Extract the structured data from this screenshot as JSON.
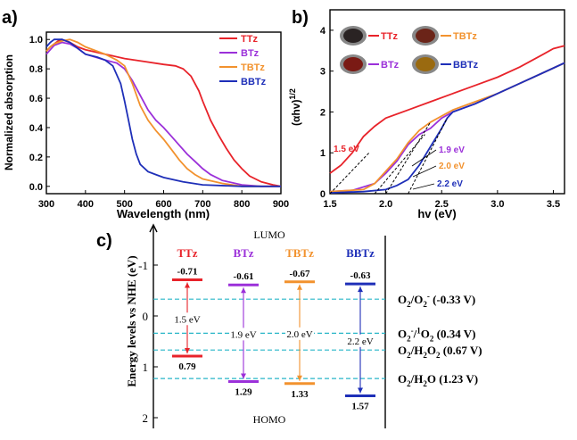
{
  "chart_data": [
    {
      "panel": "a)",
      "type": "line",
      "xlabel": "Wavelength (nm)",
      "ylabel": "Normalized absorption",
      "xlim": [
        300,
        900
      ],
      "ylim": [
        -0.05,
        1.05
      ],
      "xticks": [
        "300",
        "400",
        "500",
        "600",
        "700",
        "800",
        "900"
      ],
      "yticks": [
        "0.0",
        "0.2",
        "0.4",
        "0.6",
        "0.8",
        "1.0"
      ],
      "legend_position": "top-right",
      "series": [
        {
          "name": "TTz",
          "color": "#e8232a",
          "x": [
            300,
            310,
            320,
            330,
            340,
            360,
            380,
            400,
            450,
            500,
            550,
            600,
            630,
            650,
            670,
            690,
            700,
            720,
            740,
            760,
            780,
            800,
            820,
            850,
            880,
            900
          ],
          "y": [
            0.92,
            0.95,
            0.97,
            0.99,
            1.0,
            0.98,
            0.95,
            0.93,
            0.9,
            0.87,
            0.85,
            0.83,
            0.82,
            0.8,
            0.75,
            0.65,
            0.58,
            0.45,
            0.35,
            0.26,
            0.18,
            0.12,
            0.07,
            0.03,
            0.01,
            0.0
          ]
        },
        {
          "name": "BTz",
          "color": "#9b30d9",
          "x": [
            300,
            310,
            320,
            340,
            360,
            380,
            400,
            450,
            480,
            500,
            520,
            540,
            560,
            580,
            600,
            620,
            640,
            660,
            680,
            700,
            720,
            750,
            800,
            850,
            900
          ],
          "y": [
            0.9,
            0.93,
            0.96,
            0.98,
            0.97,
            0.94,
            0.9,
            0.86,
            0.84,
            0.8,
            0.72,
            0.62,
            0.52,
            0.45,
            0.4,
            0.34,
            0.28,
            0.22,
            0.17,
            0.12,
            0.08,
            0.04,
            0.01,
            0.0,
            0.0
          ]
        },
        {
          "name": "TBTz",
          "color": "#f2922e",
          "x": [
            300,
            310,
            320,
            340,
            360,
            380,
            400,
            450,
            480,
            500,
            520,
            540,
            560,
            580,
            600,
            620,
            640,
            660,
            680,
            700,
            750,
            800,
            850,
            900
          ],
          "y": [
            0.92,
            0.95,
            0.97,
            0.99,
            1.0,
            0.98,
            0.95,
            0.9,
            0.86,
            0.82,
            0.7,
            0.55,
            0.45,
            0.38,
            0.32,
            0.25,
            0.18,
            0.12,
            0.08,
            0.05,
            0.02,
            0.0,
            0.0,
            0.0
          ]
        },
        {
          "name": "BBTz",
          "color": "#1e2fb8",
          "x": [
            300,
            310,
            320,
            340,
            360,
            380,
            400,
            430,
            450,
            470,
            490,
            500,
            510,
            520,
            530,
            540,
            560,
            580,
            600,
            650,
            700,
            800,
            900
          ],
          "y": [
            0.95,
            0.98,
            1.0,
            1.0,
            0.98,
            0.94,
            0.9,
            0.88,
            0.86,
            0.82,
            0.7,
            0.58,
            0.45,
            0.32,
            0.22,
            0.15,
            0.1,
            0.08,
            0.06,
            0.03,
            0.01,
            0.0,
            0.0
          ]
        }
      ]
    },
    {
      "panel": "b)",
      "type": "line",
      "xlabel": "hv (eV)",
      "ylabel": "(αhv)1/2",
      "xlim": [
        1.5,
        3.6
      ],
      "ylim": [
        0,
        4.5
      ],
      "xticks": [
        "1.5",
        "2.0",
        "2.5",
        "3.0",
        "3.5"
      ],
      "yticks": [
        "0",
        "1",
        "2",
        "3",
        "4"
      ],
      "legend_position": "top",
      "series": [
        {
          "name": "TTz",
          "color": "#e8232a",
          "x": [
            1.5,
            1.6,
            1.7,
            1.8,
            1.9,
            2.0,
            2.2,
            2.4,
            2.6,
            2.8,
            3.0,
            3.2,
            3.4,
            3.5,
            3.6
          ],
          "y": [
            0.5,
            0.7,
            1.0,
            1.4,
            1.65,
            1.85,
            2.05,
            2.25,
            2.45,
            2.65,
            2.85,
            3.1,
            3.4,
            3.55,
            3.62
          ]
        },
        {
          "name": "BTz",
          "color": "#9b30d9",
          "x": [
            1.5,
            1.7,
            1.9,
            2.0,
            2.1,
            2.2,
            2.3,
            2.4,
            2.5,
            2.6,
            2.8,
            3.0,
            3.2,
            3.4,
            3.6
          ],
          "y": [
            0.05,
            0.08,
            0.25,
            0.5,
            0.8,
            1.2,
            1.45,
            1.6,
            1.85,
            2.0,
            2.2,
            2.45,
            2.7,
            2.95,
            3.2
          ]
        },
        {
          "name": "TBTz",
          "color": "#f2922e",
          "x": [
            1.5,
            1.8,
            1.9,
            2.0,
            2.1,
            2.2,
            2.3,
            2.4,
            2.5,
            2.6,
            2.8,
            3.0,
            3.2,
            3.4,
            3.6
          ],
          "y": [
            0.05,
            0.1,
            0.25,
            0.55,
            0.85,
            1.25,
            1.55,
            1.75,
            1.9,
            2.05,
            2.25,
            2.45,
            2.7,
            2.95,
            3.2
          ]
        },
        {
          "name": "BBTz",
          "color": "#1e2fb8",
          "x": [
            1.5,
            1.8,
            2.0,
            2.1,
            2.2,
            2.3,
            2.4,
            2.5,
            2.55,
            2.6,
            2.8,
            3.0,
            3.2,
            3.4,
            3.6
          ],
          "y": [
            0.02,
            0.05,
            0.1,
            0.2,
            0.35,
            0.7,
            1.15,
            1.6,
            1.85,
            2.0,
            2.2,
            2.45,
            2.7,
            2.95,
            3.2
          ]
        }
      ],
      "annotations": [
        {
          "text": "1.5 eV",
          "color": "#e8232a"
        },
        {
          "text": "1.9 eV",
          "color": "#9b30d9"
        },
        {
          "text": "2.0 eV",
          "color": "#f2922e"
        },
        {
          "text": "2.2 eV",
          "color": "#1e2fb8"
        }
      ],
      "legend": [
        {
          "name": "TTz",
          "color": "#e8232a",
          "swatch": "#2a2323"
        },
        {
          "name": "TBTz",
          "color": "#f2922e",
          "swatch": "#6b2418"
        },
        {
          "name": "BTz",
          "color": "#9b30d9",
          "swatch": "#7a1a14"
        },
        {
          "name": "BBTz",
          "color": "#1e2fb8",
          "swatch": "#9a6a10"
        }
      ]
    },
    {
      "panel": "c)",
      "type": "diagram",
      "ylabel": "Energy levels vs NHE (eV)",
      "ylim": [
        -1.5,
        2.0
      ],
      "yticks": [
        "-1",
        "0",
        "1",
        "2"
      ],
      "top_label": "LUMO",
      "bottom_label": "HOMO",
      "materials": [
        {
          "name": "TTz",
          "color": "#e8232a",
          "lumo": -0.71,
          "homo": 0.79,
          "lumo_label": "-0.71",
          "homo_label": "0.79",
          "gap_label": "1.5 eV"
        },
        {
          "name": "BTz",
          "color": "#9b30d9",
          "lumo": -0.61,
          "homo": 1.29,
          "lumo_label": "-0.61",
          "homo_label": "1.29",
          "gap_label": "1.9 eV"
        },
        {
          "name": "TBTz",
          "color": "#f2922e",
          "lumo": -0.67,
          "homo": 1.33,
          "lumo_label": "-0.67",
          "homo_label": "1.33",
          "gap_label": "2.0 eV"
        },
        {
          "name": "BBTz",
          "color": "#1e2fb8",
          "lumo": -0.63,
          "homo": 1.57,
          "lumo_label": "-0.63",
          "homo_label": "1.57",
          "gap_label": "2.2 eV"
        }
      ],
      "redox_lines": [
        {
          "value": -0.33,
          "label": "O2/O2- (-0.33 V)"
        },
        {
          "value": 0.34,
          "label": "O2-/1O2 (0.34 V)"
        },
        {
          "value": 0.67,
          "label": "O2/H2O2 (0.67 V)"
        },
        {
          "value": 1.23,
          "label": "O2/H2O (1.23 V)"
        }
      ]
    }
  ]
}
